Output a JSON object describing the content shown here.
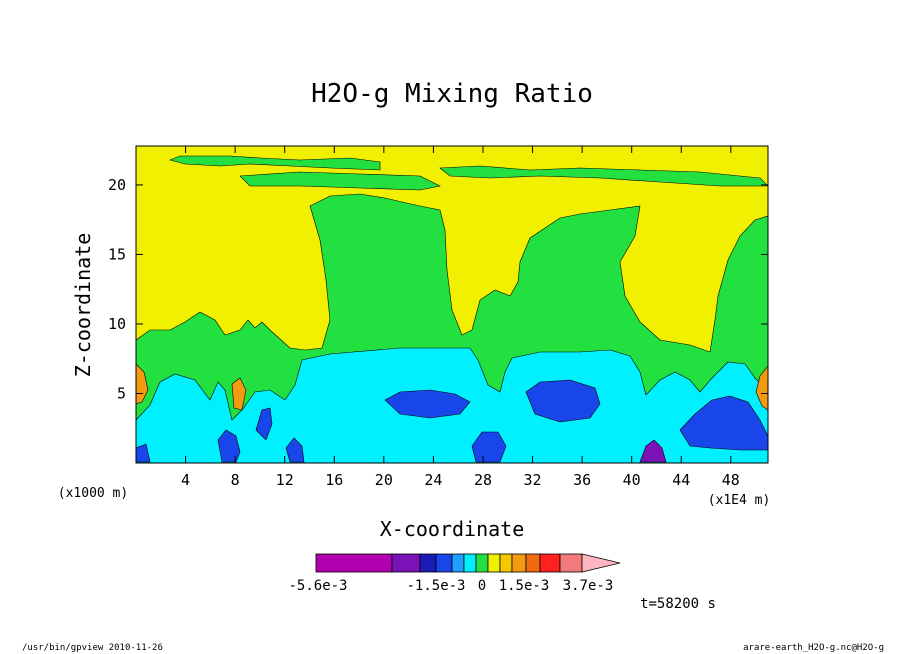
{
  "chart_data": {
    "type": "heatmap",
    "title": "H2O-g Mixing Ratio",
    "xlabel": "X-coordinate",
    "ylabel": "Z-coordinate",
    "x_unit_label": "(x1E4 m)",
    "y_unit_label": "(x1000 m)",
    "xlim": [
      0,
      51
    ],
    "ylim": [
      0,
      22.8
    ],
    "x_ticks": [
      4,
      8,
      12,
      16,
      20,
      24,
      28,
      32,
      36,
      40,
      44,
      48
    ],
    "y_ticks": [
      5,
      10,
      15,
      20
    ],
    "grid": false,
    "time_label": "t=58200 s",
    "colorbar": {
      "labels": [
        "-5.6e-3",
        "-1.5e-3",
        "0",
        "1.5e-3",
        "3.7e-3"
      ],
      "colors": [
        "#b000b0",
        "#7a12b8",
        "#1a1ab8",
        "#1846ea",
        "#1ea0ff",
        "#00f0ff",
        "#22e040",
        "#f0f000",
        "#f6c800",
        "#f49a10",
        "#f26a10",
        "#ff2020",
        "#f27a7a",
        "#ffb6c1"
      ]
    },
    "regions": [
      {
        "band": "yellow",
        "color": "#f0f000",
        "description": "background 0 to slightly positive"
      },
      {
        "band": "green",
        "color": "#22e040",
        "value": "negative small"
      },
      {
        "band": "cyan",
        "color": "#00f0ff",
        "value": "negative moderate"
      },
      {
        "band": "blue",
        "color": "#1846ea",
        "value": "more negative"
      },
      {
        "band": "darkblue",
        "color": "#1a1ab8",
        "value": "strongly negative"
      },
      {
        "band": "purple",
        "color": "#7a12b8",
        "value": "most negative"
      },
      {
        "band": "orange",
        "color": "#f49a10",
        "value": "positive"
      }
    ]
  },
  "footer": {
    "left": "/usr/bin/gpview  2010-11-26",
    "right": "arare-earth_H2O-g.nc@H2O-g"
  }
}
